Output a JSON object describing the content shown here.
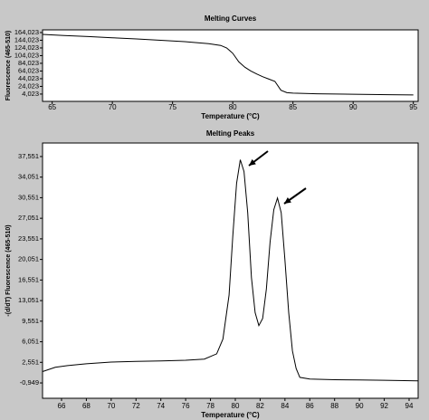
{
  "chart_data": [
    {
      "type": "line",
      "title": "Melting Curves",
      "x_label": "Temperature (°C)",
      "y_label": "Fluorescence (465-510)",
      "x": [
        64.2,
        66,
        68,
        70,
        72,
        74,
        76,
        78,
        79,
        79.5,
        80,
        80.5,
        81,
        81.5,
        82,
        82.5,
        83,
        83.5,
        84,
        84.5,
        85,
        87,
        90,
        93,
        95
      ],
      "series": [
        {
          "color": "#000000",
          "values": [
            159300,
            156500,
            153500,
            150500,
            147500,
            144000,
            140500,
            135000,
            130500,
            124000,
            110000,
            88000,
            74000,
            64000,
            56000,
            49000,
            43000,
            37000,
            14000,
            7500,
            6400,
            4800,
            3500,
            2500,
            1700
          ]
        }
      ],
      "xlim": [
        64.2,
        95.4
      ],
      "ylim": [
        -15000,
        171000
      ],
      "xticks": [
        65,
        70,
        75,
        80,
        85,
        90,
        95
      ],
      "yticks": [
        {
          "value": 4023,
          "label": "4,023"
        },
        {
          "value": 24023,
          "label": "24,023"
        },
        {
          "value": 44023,
          "label": "44,023"
        },
        {
          "value": 64023,
          "label": "64,023"
        },
        {
          "value": 84023,
          "label": "84,023"
        },
        {
          "value": 104023,
          "label": "104,023"
        },
        {
          "value": 124023,
          "label": "124,023"
        },
        {
          "value": 144023,
          "label": "144,023"
        },
        {
          "value": 164023,
          "label": "164,023"
        }
      ]
    },
    {
      "type": "line",
      "title": "Melting Peaks",
      "x_label": "Temperature (°C)",
      "y_label": "-(d/dT) Fluorescence (465-510)",
      "x": [
        64.5,
        65.5,
        66.5,
        68,
        70,
        72,
        74,
        76,
        77.5,
        78.5,
        79,
        79.5,
        79.8,
        80.1,
        80.4,
        80.7,
        81,
        81.3,
        81.6,
        81.9,
        82.2,
        82.5,
        82.8,
        83.1,
        83.4,
        83.7,
        84,
        84.3,
        84.6,
        84.9,
        85.2,
        86,
        88,
        90,
        92,
        94.7
      ],
      "series": [
        {
          "color": "#000000",
          "values": [
            1000,
            1700,
            2000,
            2300,
            2600,
            2700,
            2800,
            2900,
            3100,
            4000,
            6500,
            14000,
            24000,
            33000,
            37000,
            35000,
            28000,
            17000,
            11000,
            8800,
            10000,
            15000,
            23000,
            28500,
            30500,
            28000,
            20000,
            11000,
            4500,
            1500,
            0,
            -300,
            -400,
            -450,
            -500,
            -600
          ]
        }
      ],
      "xlim": [
        64.47,
        94.73
      ],
      "ylim": [
        -3560,
        39850
      ],
      "xticks": [
        66,
        68,
        70,
        72,
        74,
        76,
        78,
        80,
        82,
        84,
        86,
        88,
        90,
        92,
        94
      ],
      "yticks": [
        {
          "value": -949,
          "label": "-0,949"
        },
        {
          "value": 2551,
          "label": "2,551"
        },
        {
          "value": 6051,
          "label": "6,051"
        },
        {
          "value": 9551,
          "label": "9,551"
        },
        {
          "value": 13051,
          "label": "13,051"
        },
        {
          "value": 16551,
          "label": "16,551"
        },
        {
          "value": 20051,
          "label": "20,051"
        },
        {
          "value": 23551,
          "label": "23,551"
        },
        {
          "value": 27051,
          "label": "27,051"
        },
        {
          "value": 30551,
          "label": "30,551"
        },
        {
          "value": 34051,
          "label": "34,051"
        },
        {
          "value": 37551,
          "label": "37,551"
        }
      ]
    }
  ]
}
